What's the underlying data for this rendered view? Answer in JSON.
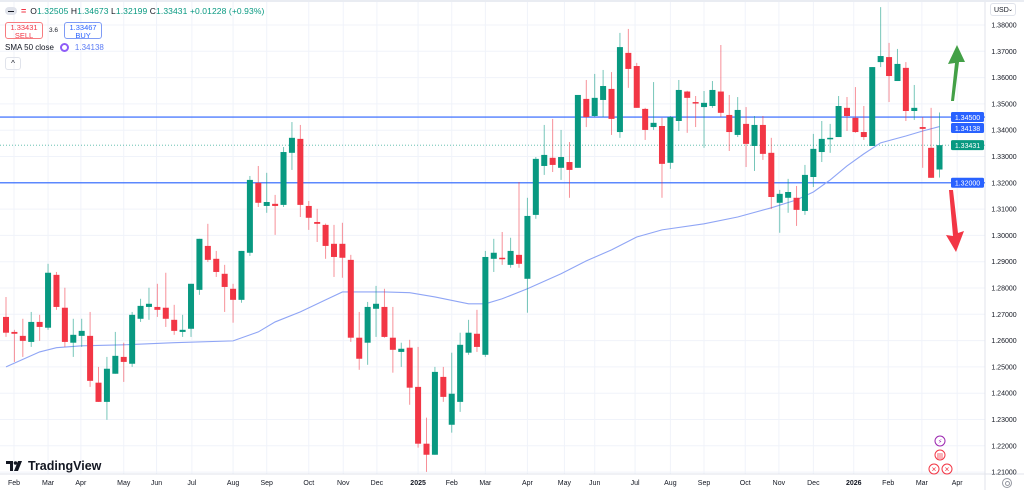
{
  "legend": {
    "open_label": "O",
    "open": "1.32505",
    "high_label": "H",
    "high": "1.34673",
    "low_label": "L",
    "low": "1.32199",
    "close_label": "C",
    "close": "1.33431",
    "change": "+0.01228 (+0.93%)",
    "sell_price": "1.33431",
    "sell_label": "SELL",
    "spread": "3.6",
    "buy_price": "1.33467",
    "buy_label": "BUY",
    "sma_label": "SMA 50 close",
    "sma_value": "1.34138",
    "collapse_icon": "^"
  },
  "currency": "USD",
  "brand": "TradingView",
  "colors": {
    "up": "#089981",
    "down": "#f23645",
    "sma": "#8fa5f5",
    "hline": "#2962ff",
    "arrow_up": "#43a047",
    "arrow_down": "#f23645"
  },
  "price_axis": {
    "ticks": [
      "1.38000",
      "1.37000",
      "1.36000",
      "1.35000",
      "1.34000",
      "1.33000",
      "1.32000",
      "1.31000",
      "1.30000",
      "1.29000",
      "1.28000",
      "1.27000",
      "1.26000",
      "1.25000",
      "1.24000",
      "1.23000",
      "1.22000",
      "1.21000"
    ],
    "tags": [
      {
        "label": "1.34500",
        "value": 1.345,
        "color": "#2962ff"
      },
      {
        "label": "1.34138",
        "value": 1.34138,
        "color": "#2962ff"
      },
      {
        "label": "1.33431",
        "value": 1.33431,
        "color": "#089981"
      },
      {
        "label": "1.32000",
        "value": 1.32,
        "color": "#2962ff"
      }
    ]
  },
  "time_axis": [
    {
      "label": "Feb",
      "at": 0.95
    },
    {
      "label": "Mar",
      "at": 5.0
    },
    {
      "label": "Apr",
      "at": 8.9
    },
    {
      "label": "May",
      "at": 14.0
    },
    {
      "label": "Jun",
      "at": 17.9
    },
    {
      "label": "Jul",
      "at": 22.1
    },
    {
      "label": "Aug",
      "at": 27.0
    },
    {
      "label": "Sep",
      "at": 31.0
    },
    {
      "label": "Oct",
      "at": 36.0
    },
    {
      "label": "Nov",
      "at": 40.1
    },
    {
      "label": "Dec",
      "at": 44.1
    },
    {
      "label": "2025",
      "at": 49.0,
      "bold": true
    },
    {
      "label": "Feb",
      "at": 53.0
    },
    {
      "label": "Mar",
      "at": 57.0
    },
    {
      "label": "Apr",
      "at": 62.0
    },
    {
      "label": "May",
      "at": 66.4
    },
    {
      "label": "Jun",
      "at": 70.0
    },
    {
      "label": "Jul",
      "at": 74.8
    },
    {
      "label": "Aug",
      "at": 79.0
    },
    {
      "label": "Sep",
      "at": 83.0
    },
    {
      "label": "Oct",
      "at": 87.9
    },
    {
      "label": "Nov",
      "at": 91.9
    },
    {
      "label": "Dec",
      "at": 96.0
    },
    {
      "label": "2026",
      "at": 100.8,
      "bold": true
    },
    {
      "label": "Feb",
      "at": 104.9
    },
    {
      "label": "Mar",
      "at": 108.9
    },
    {
      "label": "Apr",
      "at": 113.1
    }
  ],
  "horizontal_lines": [
    1.345,
    1.32
  ],
  "current_price": 1.33431,
  "candles_ohlc": [
    [
      1.269,
      1.2766,
      1.2614,
      1.263
    ],
    [
      1.2633,
      1.2641,
      1.2519,
      1.2626
    ],
    [
      1.2618,
      1.2683,
      1.2538,
      1.2599
    ],
    [
      1.2595,
      1.2709,
      1.2576,
      1.2671
    ],
    [
      1.2671,
      1.2698,
      1.2599,
      1.2652
    ],
    [
      1.2649,
      1.2892,
      1.2641,
      1.2858
    ],
    [
      1.285,
      1.2861,
      1.2717,
      1.2728
    ],
    [
      1.2725,
      1.2801,
      1.2576,
      1.2595
    ],
    [
      1.2592,
      1.2683,
      1.2538,
      1.2622
    ],
    [
      1.2618,
      1.2683,
      1.2576,
      1.2637
    ],
    [
      1.2618,
      1.2709,
      1.2424,
      1.2447
    ],
    [
      1.244,
      1.25,
      1.2367,
      1.2367
    ],
    [
      1.2367,
      1.2538,
      1.2299,
      1.2493
    ],
    [
      1.2474,
      1.2633,
      1.2474,
      1.2542
    ],
    [
      1.2538,
      1.2592,
      1.2443,
      1.2519
    ],
    [
      1.2512,
      1.2709,
      1.25,
      1.2698
    ],
    [
      1.2683,
      1.2759,
      1.2671,
      1.2732
    ],
    [
      1.2728,
      1.2801,
      1.2679,
      1.274
    ],
    [
      1.2728,
      1.2816,
      1.269,
      1.2717
    ],
    [
      1.2725,
      1.2858,
      1.2652,
      1.2683
    ],
    [
      1.2679,
      1.2736,
      1.2622,
      1.2637
    ],
    [
      1.2633,
      1.2698,
      1.2614,
      1.2641
    ],
    [
      1.2645,
      1.2816,
      1.2614,
      1.2816
    ],
    [
      1.2793,
      1.2987,
      1.2774,
      1.2987
    ],
    [
      1.296,
      1.3044,
      1.2899,
      1.2907
    ],
    [
      1.2911,
      1.2941,
      1.2842,
      1.2861
    ],
    [
      1.2854,
      1.2888,
      1.2709,
      1.2804
    ],
    [
      1.2797,
      1.2816,
      1.2668,
      1.2755
    ],
    [
      1.2755,
      1.2941,
      1.2744,
      1.2941
    ],
    [
      1.2934,
      1.3226,
      1.2922,
      1.3211
    ],
    [
      1.32,
      1.3264,
      1.3108,
      1.3124
    ],
    [
      1.3112,
      1.3238,
      1.3086,
      1.3127
    ],
    [
      1.312,
      1.3154,
      1.3002,
      1.3112
    ],
    [
      1.3116,
      1.3336,
      1.3108,
      1.3317
    ],
    [
      1.3314,
      1.3431,
      1.3249,
      1.3371
    ],
    [
      1.3367,
      1.342,
      1.307,
      1.3116
    ],
    [
      1.3112,
      1.3131,
      1.3021,
      1.3067
    ],
    [
      1.3051,
      1.3101,
      1.2975,
      1.3044
    ],
    [
      1.304,
      1.3045,
      1.2911,
      1.296
    ],
    [
      1.2968,
      1.304,
      1.2842,
      1.2918
    ],
    [
      1.2968,
      1.3048,
      1.2839,
      1.2915
    ],
    [
      1.2907,
      1.2926,
      1.2595,
      1.2611
    ],
    [
      1.2611,
      1.2709,
      1.2489,
      1.2531
    ],
    [
      1.2592,
      1.2747,
      1.2508,
      1.2728
    ],
    [
      1.2721,
      1.2808,
      1.2614,
      1.274
    ],
    [
      1.2728,
      1.2797,
      1.2611,
      1.2614
    ],
    [
      1.2611,
      1.2728,
      1.2478,
      1.2565
    ],
    [
      1.2557,
      1.2592,
      1.25,
      1.2569
    ],
    [
      1.2573,
      1.2603,
      1.2356,
      1.2421
    ],
    [
      1.2424,
      1.2576,
      1.2193,
      1.2208
    ],
    [
      1.2208,
      1.2307,
      1.2101,
      1.2166
    ],
    [
      1.2166,
      1.25,
      1.2166,
      1.2481
    ],
    [
      1.2462,
      1.25,
      1.2367,
      1.2386
    ],
    [
      1.228,
      1.2554,
      1.225,
      1.2398
    ],
    [
      1.2367,
      1.263,
      1.2329,
      1.2584
    ],
    [
      1.2554,
      1.2679,
      1.2546,
      1.263
    ],
    [
      1.2626,
      1.2717,
      1.2557,
      1.2576
    ],
    [
      1.2546,
      1.2941,
      1.2538,
      1.2918
    ],
    [
      1.2911,
      1.2987,
      1.2861,
      1.2934
    ],
    [
      1.2915,
      1.3013,
      1.2888,
      1.2911
    ],
    [
      1.2888,
      1.2991,
      1.2877,
      1.2941
    ],
    [
      1.2926,
      1.3203,
      1.2877,
      1.2892
    ],
    [
      1.2835,
      1.3143,
      1.2706,
      1.3074
    ],
    [
      1.3078,
      1.3298,
      1.3063,
      1.3291
    ],
    [
      1.3264,
      1.342,
      1.323,
      1.3306
    ],
    [
      1.3295,
      1.3443,
      1.3241,
      1.3268
    ],
    [
      1.3257,
      1.3401,
      1.3211,
      1.3298
    ],
    [
      1.3279,
      1.3355,
      1.3143,
      1.3249
    ],
    [
      1.3257,
      1.3534,
      1.3257,
      1.3534
    ],
    [
      1.3519,
      1.3591,
      1.3412,
      1.345
    ],
    [
      1.3454,
      1.3614,
      1.345,
      1.3523
    ],
    [
      1.3515,
      1.3629,
      1.345,
      1.3568
    ],
    [
      1.3557,
      1.3621,
      1.3382,
      1.3443
    ],
    [
      1.3393,
      1.377,
      1.3371,
      1.3716
    ],
    [
      1.3694,
      1.3785,
      1.3561,
      1.3633
    ],
    [
      1.3644,
      1.3656,
      1.3485,
      1.3485
    ],
    [
      1.3481,
      1.3485,
      1.3363,
      1.3401
    ],
    [
      1.3412,
      1.3583,
      1.3401,
      1.3428
    ],
    [
      1.3416,
      1.3447,
      1.3143,
      1.3272
    ],
    [
      1.3276,
      1.3454,
      1.3253,
      1.345
    ],
    [
      1.3435,
      1.3591,
      1.3397,
      1.3553
    ],
    [
      1.3547,
      1.355,
      1.339,
      1.3523
    ],
    [
      1.3507,
      1.353,
      1.3412,
      1.3505
    ],
    [
      1.3488,
      1.3549,
      1.3333,
      1.3504
    ],
    [
      1.3492,
      1.3587,
      1.3485,
      1.3553
    ],
    [
      1.3547,
      1.3724,
      1.345,
      1.3466
    ],
    [
      1.3458,
      1.3534,
      1.3321,
      1.3393
    ],
    [
      1.3382,
      1.3526,
      1.3374,
      1.3477
    ],
    [
      1.3424,
      1.3488,
      1.326,
      1.3348
    ],
    [
      1.334,
      1.3454,
      1.3245,
      1.342
    ],
    [
      1.342,
      1.3454,
      1.3287,
      1.331
    ],
    [
      1.3314,
      1.3371,
      1.3101,
      1.3146
    ],
    [
      1.3124,
      1.3173,
      1.301,
      1.3158
    ],
    [
      1.3143,
      1.3215,
      1.3086,
      1.3165
    ],
    [
      1.3143,
      1.3188,
      1.3036,
      1.3097
    ],
    [
      1.3093,
      1.3268,
      1.3078,
      1.323
    ],
    [
      1.3222,
      1.3386,
      1.3184,
      1.3329
    ],
    [
      1.3317,
      1.3435,
      1.3279,
      1.3367
    ],
    [
      1.3367,
      1.3424,
      1.3314,
      1.3371
    ],
    [
      1.3374,
      1.353,
      1.3374,
      1.3492
    ],
    [
      1.3485,
      1.3526,
      1.3397,
      1.3454
    ],
    [
      1.3447,
      1.3564,
      1.339,
      1.3393
    ],
    [
      1.3393,
      1.3492,
      1.3363,
      1.3374
    ],
    [
      1.334,
      1.364,
      1.334,
      1.364
    ],
    [
      1.3659,
      1.3868,
      1.364,
      1.3682
    ],
    [
      1.3678,
      1.3732,
      1.3507,
      1.3606
    ],
    [
      1.3587,
      1.3709,
      1.3587,
      1.3652
    ],
    [
      1.3637,
      1.3659,
      1.3435,
      1.3473
    ],
    [
      1.3473,
      1.3572,
      1.3439,
      1.3485
    ],
    [
      1.3412,
      1.345,
      1.3257,
      1.3405
    ],
    [
      1.3333,
      1.3485,
      1.3219,
      1.3219
    ],
    [
      1.32505,
      1.34673,
      1.32199,
      1.33431
    ]
  ],
  "sma50": [
    [
      0,
      1.25
    ],
    [
      4,
      1.2557
    ],
    [
      6,
      1.2573
    ],
    [
      9,
      1.258
    ],
    [
      14,
      1.2584
    ],
    [
      20,
      1.2592
    ],
    [
      27,
      1.2599
    ],
    [
      30,
      1.2633
    ],
    [
      32,
      1.2671
    ],
    [
      35,
      1.2709
    ],
    [
      38,
      1.2755
    ],
    [
      40,
      1.2785
    ],
    [
      45,
      1.2785
    ],
    [
      48,
      1.2782
    ],
    [
      51,
      1.2766
    ],
    [
      55,
      1.274
    ],
    [
      57,
      1.274
    ],
    [
      59,
      1.2759
    ],
    [
      62,
      1.2797
    ],
    [
      66,
      1.2854
    ],
    [
      69,
      1.2903
    ],
    [
      72,
      1.2945
    ],
    [
      75,
      1.2994
    ],
    [
      78,
      1.3021
    ],
    [
      83,
      1.3044
    ],
    [
      87,
      1.307
    ],
    [
      91,
      1.3105
    ],
    [
      94,
      1.3135
    ],
    [
      96,
      1.3165
    ],
    [
      98,
      1.3211
    ],
    [
      100,
      1.3264
    ],
    [
      102,
      1.331
    ],
    [
      104,
      1.3352
    ],
    [
      107,
      1.3378
    ],
    [
      109,
      1.3397
    ],
    [
      111,
      1.34138
    ]
  ],
  "events": [
    {
      "icon": "lightning-icon",
      "glyph": "⚡",
      "color": "#9c27b0"
    },
    {
      "icon": "us-flag-icon",
      "glyph": "▤",
      "color": "#f23645"
    },
    {
      "icon": "uk-flag-icon",
      "glyph": "✕",
      "color": "#f23645"
    },
    {
      "icon": "uk-flag-icon",
      "glyph": "✕",
      "color": "#f23645"
    }
  ]
}
